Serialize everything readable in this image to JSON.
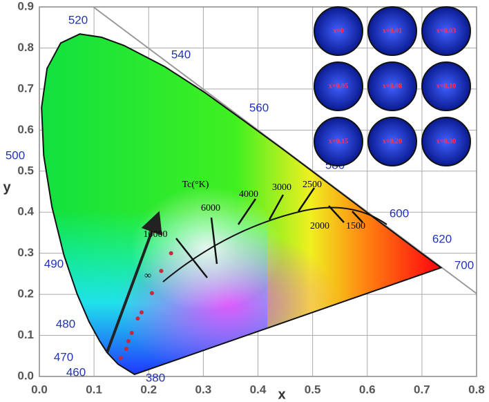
{
  "chart_data": {
    "type": "scatter",
    "xlabel": "x",
    "ylabel": "y",
    "x": [
      0.149,
      0.159,
      0.163,
      0.169,
      0.18,
      0.187,
      0.206,
      0.223,
      0.241
    ],
    "values": [
      0.045,
      0.067,
      0.086,
      0.106,
      0.141,
      0.156,
      0.203,
      0.257,
      0.3
    ],
    "color": "#c8283c",
    "xlim": [
      0,
      0.8
    ],
    "ylim": [
      0,
      0.9
    ],
    "xticks": [
      {
        "value": 0,
        "label": "0.0"
      },
      0.1,
      0.2,
      0.3,
      0.4,
      0.5,
      0.6,
      0.7,
      0.8
    ],
    "yticks": [
      {
        "value": 0,
        "label": "0.0"
      },
      0.1,
      0.2,
      0.3,
      0.4,
      0.5,
      0.6,
      0.7,
      0.8,
      0.9
    ],
    "grid": true,
    "wavelength_labels": [
      "520",
      "540",
      "560",
      "580",
      "600",
      "620",
      "700",
      "500",
      "490",
      "480",
      "470",
      "460",
      "380"
    ],
    "cct_title": "Tc(°K)",
    "cct_labels": [
      "10000",
      "6000",
      "4000",
      "3000",
      "2500",
      "2000",
      "1500",
      "∞"
    ],
    "sample_labels": [
      "x=0",
      "x=0.01",
      "x=0.03",
      "x=0.05",
      "x=0.08",
      "x=0.10",
      "x=0.15",
      "x=0.20",
      "x=0.30"
    ]
  }
}
